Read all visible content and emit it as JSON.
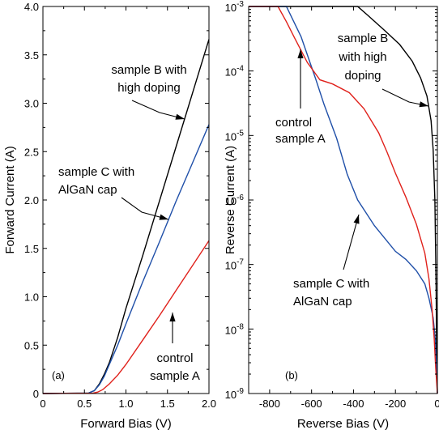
{
  "chart_data": [
    {
      "type": "line",
      "panel_label": "(a)",
      "xlabel": "Forward Bias (V)",
      "ylabel": "Forward Current (A)",
      "xlim": [
        0,
        2.0
      ],
      "ylim": [
        0,
        4.0
      ],
      "x_ticks": [
        0,
        0.5,
        1.0,
        1.5,
        2.0
      ],
      "x_tick_labels": [
        "0",
        "0.5",
        "1.0",
        "1.5",
        "2.0"
      ],
      "y_ticks": [
        0,
        0.5,
        1.0,
        1.5,
        2.0,
        2.5,
        3.0,
        3.5,
        4.0
      ],
      "y_tick_labels": [
        "0",
        "0.5",
        "1.0",
        "1.5",
        "2.0",
        "2.5",
        "3.0",
        "3.5",
        "4.0"
      ],
      "grid": false,
      "series": [
        {
          "color": "#000000",
          "x": [
            0,
            0.55,
            0.62,
            0.68,
            0.74,
            0.8,
            0.9,
            1.0,
            1.2,
            1.4,
            1.6,
            1.8,
            2.0
          ],
          "y": [
            0,
            0.005,
            0.03,
            0.1,
            0.2,
            0.32,
            0.58,
            0.88,
            1.42,
            1.98,
            2.54,
            3.1,
            3.66
          ]
        },
        {
          "color": "#1f4fa8",
          "x": [
            0,
            0.55,
            0.62,
            0.68,
            0.74,
            0.8,
            0.9,
            1.0,
            1.2,
            1.4,
            1.6,
            1.8,
            2.0
          ],
          "y": [
            0,
            0.005,
            0.03,
            0.09,
            0.18,
            0.3,
            0.5,
            0.72,
            1.15,
            1.56,
            1.98,
            2.38,
            2.78
          ]
        },
        {
          "color": "#e0211b",
          "x": [
            0,
            0.6,
            0.66,
            0.72,
            0.8,
            0.9,
            1.0,
            1.2,
            1.4,
            1.6,
            1.8,
            2.0
          ],
          "y": [
            0,
            0.003,
            0.015,
            0.04,
            0.1,
            0.19,
            0.3,
            0.55,
            0.8,
            1.06,
            1.32,
            1.58
          ]
        }
      ],
      "annotations": [
        {
          "lines": [
            "sample B with",
            "high doping"
          ]
        },
        {
          "lines": [
            "sample C with",
            "AlGaN cap"
          ]
        },
        {
          "lines": [
            "control",
            "sample A"
          ]
        }
      ]
    },
    {
      "type": "line",
      "panel_label": "(b)",
      "xlabel": "Reverse Bias (V)",
      "ylabel": "Reverse Current (A)",
      "xlim": [
        -900,
        0
      ],
      "ylim": [
        1e-09,
        0.001
      ],
      "y_scale": "log",
      "x_ticks": [
        -800,
        -600,
        -400,
        -200,
        0
      ],
      "x_tick_labels": [
        "-800",
        "-600",
        "-400",
        "-200",
        "0"
      ],
      "y_ticks": [
        1e-09,
        1e-08,
        1e-07,
        1e-06,
        1e-05,
        0.0001,
        0.001
      ],
      "y_tick_bases": [
        "10",
        "10",
        "10",
        "10",
        "10",
        "10",
        "10"
      ],
      "y_tick_exps": [
        "-9",
        "-8",
        "-7",
        "-6",
        "-5",
        "-4",
        "-3"
      ],
      "grid": false,
      "series": [
        {
          "color": "#000000",
          "x": [
            -900,
            -380,
            -330,
            -250,
            -180,
            -120,
            -80,
            -50,
            -30,
            -20,
            -12,
            -6,
            -3,
            0
          ],
          "y": [
            0.001,
            0.001,
            0.00072,
            0.00042,
            0.000258,
            0.000142,
            7.8e-05,
            4.1e-05,
            1.7e-05,
            6e-06,
            1e-06,
            5e-08,
            3e-09,
            1e-09
          ]
        },
        {
          "color": "#1f4fa8",
          "x": [
            -900,
            -720,
            -650,
            -580,
            -540,
            -480,
            -430,
            -380,
            -300,
            -200,
            -150,
            -100,
            -60,
            -40,
            -20,
            -10,
            -5,
            0
          ],
          "y": [
            0.001,
            0.001,
            0.00034,
            7.5e-05,
            3e-05,
            9e-06,
            2.5e-06,
            1e-06,
            4e-07,
            1.6e-07,
            1.2e-07,
            8e-08,
            5e-08,
            3e-08,
            1.5e-08,
            7e-09,
            3e-09,
            1e-09
          ]
        },
        {
          "color": "#e0211b",
          "x": [
            -900,
            -760,
            -720,
            -680,
            -620,
            -560,
            -500,
            -420,
            -350,
            -280,
            -240,
            -200,
            -150,
            -100,
            -60,
            -40,
            -25,
            -15,
            -8,
            0
          ],
          "y": [
            0.001,
            0.001,
            0.00058,
            0.00032,
            0.000135,
            7.3e-05,
            6.3e-05,
            4.6e-05,
            2.6e-05,
            1.1e-05,
            5.5e-06,
            2.6e-06,
            1.1e-06,
            4.2e-07,
            1.5e-07,
            6e-08,
            2e-08,
            7e-09,
            2.5e-09,
            1e-09
          ]
        }
      ],
      "annotations": [
        {
          "lines": [
            "sample B",
            "with high",
            "doping"
          ]
        },
        {
          "lines": [
            "control",
            "sample A"
          ]
        },
        {
          "lines": [
            "sample C with",
            "AlGaN cap"
          ]
        }
      ]
    }
  ]
}
